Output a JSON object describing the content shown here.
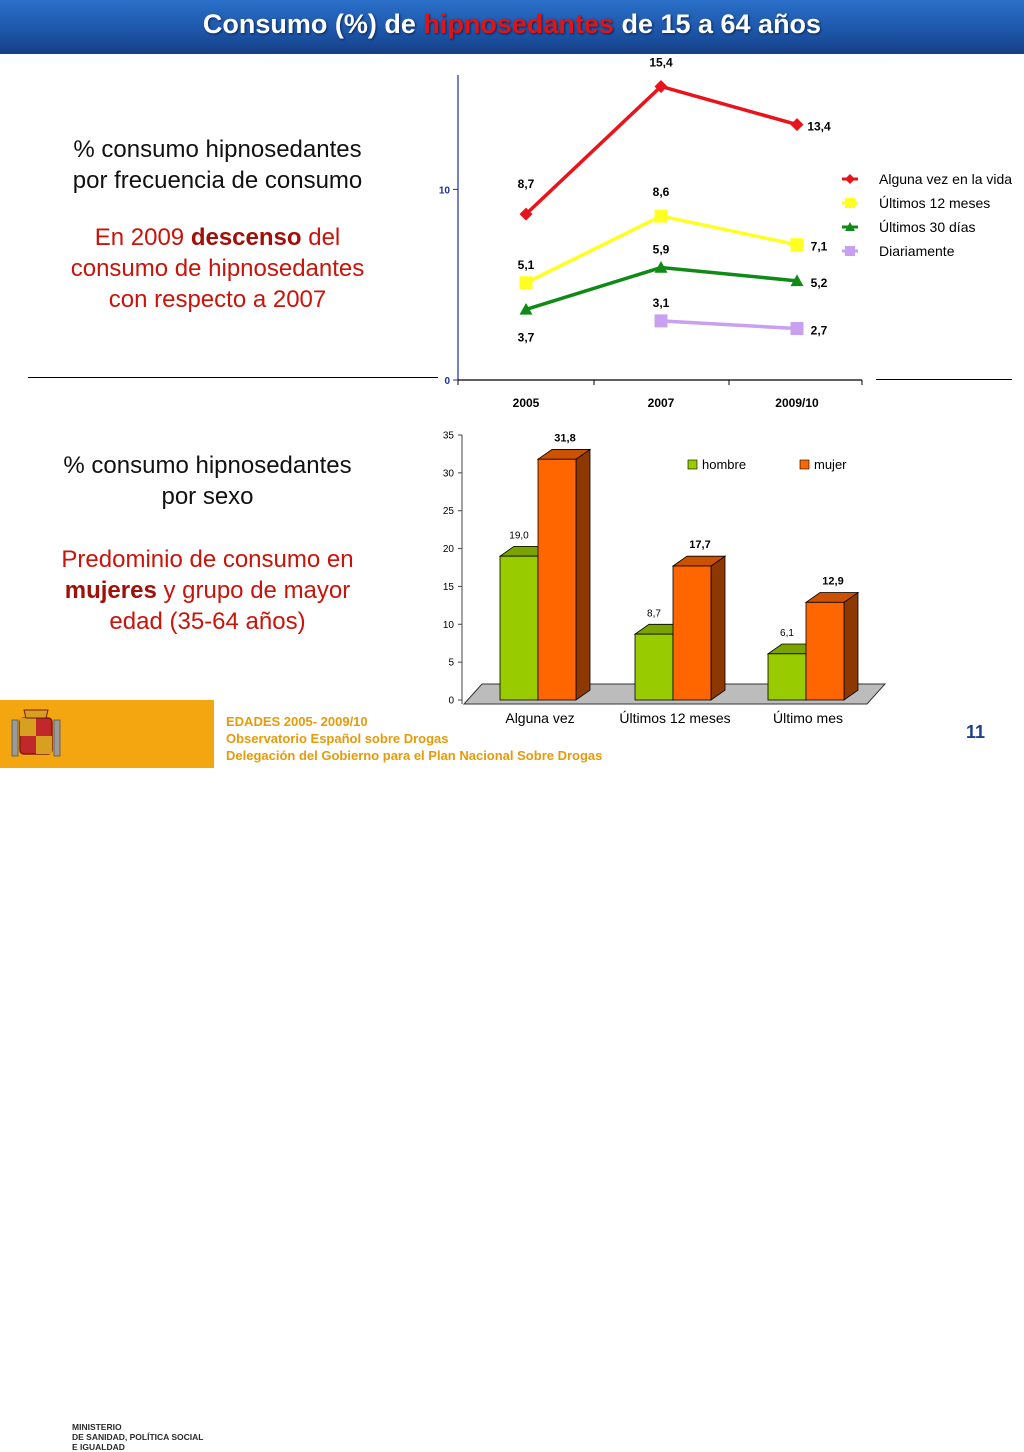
{
  "title": {
    "prefix": "Consumo (%) de ",
    "highlight": "hipnosedantes",
    "suffix": " de 15 a 64 años"
  },
  "left_top": {
    "heading_line1": "% consumo hipnosedantes",
    "heading_line2": "por frecuencia de consumo",
    "note_line1_a": "En 2009 ",
    "note_line1_b": "descenso",
    "note_line1_c": " del",
    "note_line2": "consumo de hipnosedantes",
    "note_line3": "con respecto a 2007"
  },
  "left_bottom": {
    "heading_line1": "% consumo hipnosedantes",
    "heading_line2": "por sexo",
    "note_line1": "Predominio de consumo en",
    "note_line2_a": "mujeres",
    "note_line2_b": " y grupo de mayor",
    "note_line3": "edad (35-64 años)"
  },
  "chart_data": [
    {
      "type": "line",
      "categories": [
        "2005",
        "2007",
        "2009/10"
      ],
      "ylim": [
        0,
        16
      ],
      "yticks": [
        "0",
        "10"
      ],
      "legend_position": "right",
      "series": [
        {
          "name": "Alguna vez en la vida",
          "color": "#e8141b",
          "marker": "diamond",
          "values": [
            8.7,
            15.4,
            13.4
          ],
          "labels": [
            "8,7",
            "15,4",
            "13,4"
          ]
        },
        {
          "name": "Últimos 12 meses",
          "color": "#ffff22",
          "marker": "square",
          "values": [
            5.1,
            8.6,
            7.1
          ],
          "labels": [
            "5,1",
            "8,6",
            "7,1"
          ]
        },
        {
          "name": "Últimos 30 días",
          "color": "#0f8a16",
          "marker": "triangle",
          "values": [
            3.7,
            5.9,
            5.2
          ],
          "labels": [
            "3,7",
            "5,9",
            "5,2"
          ]
        },
        {
          "name": "Diariamente",
          "color": "#c9a0f0",
          "marker": "square",
          "values": [
            null,
            3.1,
            2.7
          ],
          "labels": [
            "",
            "3,1",
            "2,7"
          ]
        }
      ]
    },
    {
      "type": "bar",
      "categories": [
        "Alguna vez",
        "Últimos 12 meses",
        "Último mes"
      ],
      "ylim": [
        0,
        35
      ],
      "yticks": [
        "0",
        "5",
        "10",
        "15",
        "20",
        "25",
        "30",
        "35"
      ],
      "legend_position": "top-right",
      "series": [
        {
          "name": "hombre",
          "color": "#99cc00",
          "values": [
            19.0,
            8.7,
            6.1
          ],
          "labels": [
            "19,0",
            "8,7",
            "6,1"
          ]
        },
        {
          "name": "mujer",
          "color": "#ff6600",
          "values": [
            31.8,
            17.7,
            12.9
          ],
          "labels": [
            "31,8",
            "17,7",
            "12,9"
          ]
        }
      ]
    }
  ],
  "footer": {
    "line1": "EDADES 2005- 2009/10",
    "line2": "Observatorio Español sobre Drogas",
    "line3": "Delegación del Gobierno para el Plan Nacional Sobre Drogas",
    "ministry_line1": "MINISTERIO",
    "ministry_line2": "DE SANIDAD, POLÍTICA SOCIAL",
    "ministry_line3": "E IGUALDAD",
    "page_number": "11"
  }
}
